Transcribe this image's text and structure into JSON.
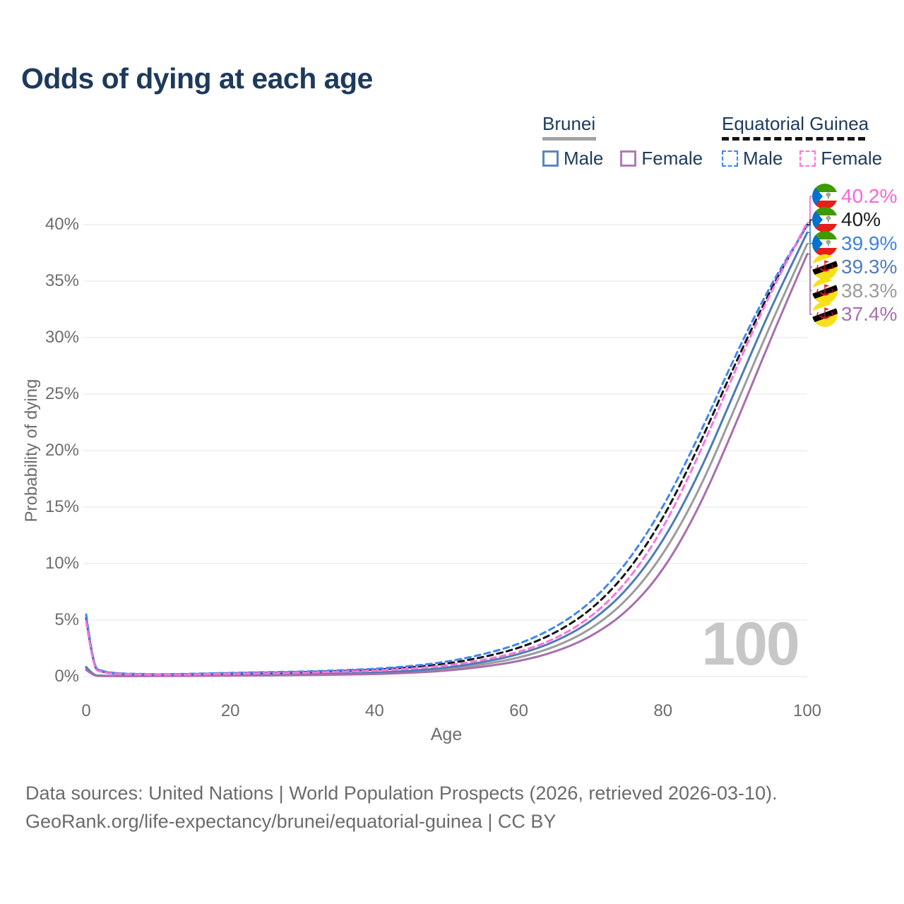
{
  "title": "Odds of dying at each age",
  "legend": {
    "groups": [
      {
        "label": "Brunei",
        "underline_style": "solid",
        "underline_color": "#a3a3a3",
        "items": [
          {
            "label": "Male",
            "color": "#5b87b7",
            "dashed": false
          },
          {
            "label": "Female",
            "color": "#b07cb3",
            "dashed": false
          }
        ]
      },
      {
        "label": "Equatorial Guinea",
        "underline_style": "dashed",
        "underline_color": "#141414",
        "items": [
          {
            "label": "Male",
            "color": "#4285f0",
            "dashed": true
          },
          {
            "label": "Female",
            "color": "#fb74dd",
            "dashed": true
          }
        ]
      }
    ]
  },
  "chart_data": {
    "type": "line",
    "title": "Odds of dying at each age",
    "xlabel": "Age",
    "ylabel": "Probability of dying",
    "xlim": [
      0,
      100
    ],
    "ylim": [
      0,
      40
    ],
    "grid": "horizontal",
    "legend_position": "top-right",
    "watermark": "100",
    "xticks": [
      {
        "v": 0,
        "label": "0"
      },
      {
        "v": 20,
        "label": "20"
      },
      {
        "v": 40,
        "label": "40"
      },
      {
        "v": 60,
        "label": "60"
      },
      {
        "v": 80,
        "label": "80"
      },
      {
        "v": 100,
        "label": "100"
      }
    ],
    "yticks": [
      {
        "v": 0,
        "label": "0%"
      },
      {
        "v": 5,
        "label": "5%"
      },
      {
        "v": 10,
        "label": "10%"
      },
      {
        "v": 15,
        "label": "15%"
      },
      {
        "v": 20,
        "label": "20%"
      },
      {
        "v": 25,
        "label": "25%"
      },
      {
        "v": 30,
        "label": "30%"
      },
      {
        "v": 35,
        "label": "35%"
      },
      {
        "v": 40,
        "label": "40%"
      }
    ],
    "x": [
      0,
      1,
      2,
      4,
      6,
      10,
      15,
      20,
      25,
      30,
      35,
      40,
      45,
      50,
      55,
      60,
      65,
      70,
      75,
      80,
      85,
      90,
      95,
      100
    ],
    "series": [
      {
        "name": "Brunei — Both sexes",
        "country": "brunei",
        "color": "#9c9c9c",
        "dashed": false,
        "end_value": 38.3,
        "values": [
          0.75,
          0.1,
          0.07,
          0.05,
          0.05,
          0.06,
          0.08,
          0.11,
          0.14,
          0.17,
          0.22,
          0.28,
          0.42,
          0.66,
          1.05,
          1.65,
          2.6,
          4.15,
          6.7,
          10.7,
          16.4,
          23.8,
          31.3,
          38.3
        ]
      },
      {
        "name": "Brunei — Male",
        "country": "brunei",
        "color": "#4d7cb5",
        "dashed": false,
        "end_value": 39.3,
        "values": [
          0.85,
          0.12,
          0.08,
          0.06,
          0.06,
          0.07,
          0.1,
          0.14,
          0.17,
          0.2,
          0.26,
          0.34,
          0.5,
          0.78,
          1.25,
          1.95,
          3.05,
          4.8,
          7.6,
          11.9,
          17.9,
          25.3,
          32.7,
          39.3
        ]
      },
      {
        "name": "Brunei — Female",
        "country": "brunei",
        "color": "#a76fad",
        "dashed": false,
        "end_value": 37.4,
        "values": [
          0.6,
          0.08,
          0.05,
          0.04,
          0.04,
          0.05,
          0.06,
          0.08,
          0.1,
          0.13,
          0.17,
          0.22,
          0.33,
          0.52,
          0.85,
          1.35,
          2.15,
          3.5,
          5.7,
          9.3,
          14.9,
          22.2,
          30.0,
          37.4
        ]
      },
      {
        "name": "Equatorial Guinea — Both sexes",
        "country": "equatorial-guinea",
        "color": "#161616",
        "dashed": true,
        "end_value": 40.0,
        "values": [
          5.2,
          0.82,
          0.45,
          0.27,
          0.22,
          0.18,
          0.22,
          0.29,
          0.34,
          0.39,
          0.49,
          0.6,
          0.81,
          1.13,
          1.7,
          2.5,
          3.8,
          5.85,
          9.1,
          13.9,
          20.4,
          27.7,
          34.4,
          40.0
        ]
      },
      {
        "name": "Equatorial Guinea — Male",
        "country": "equatorial-guinea",
        "color": "#4285f0",
        "dashed": true,
        "end_value": 39.9,
        "values": [
          5.5,
          0.9,
          0.5,
          0.3,
          0.25,
          0.2,
          0.25,
          0.33,
          0.39,
          0.44,
          0.55,
          0.68,
          0.92,
          1.3,
          1.95,
          2.85,
          4.3,
          6.5,
          10.0,
          14.9,
          21.3,
          28.4,
          34.8,
          39.9
        ]
      },
      {
        "name": "Equatorial Guinea — Female",
        "country": "equatorial-guinea",
        "color": "#fb74dd",
        "dashed": true,
        "end_value": 40.2,
        "values": [
          4.9,
          0.74,
          0.4,
          0.24,
          0.2,
          0.16,
          0.19,
          0.25,
          0.3,
          0.34,
          0.43,
          0.53,
          0.7,
          0.97,
          1.45,
          2.15,
          3.3,
          5.2,
          8.3,
          13.0,
          19.6,
          27.1,
          34.1,
          40.2
        ]
      }
    ],
    "end_labels": [
      {
        "text": "40.2%",
        "value": 40.2,
        "color": "#f766d8",
        "flag": "equatorial-guinea"
      },
      {
        "text": "40%",
        "value": 40.0,
        "color": "#1c1c1c",
        "flag": "equatorial-guinea"
      },
      {
        "text": "39.9%",
        "value": 39.9,
        "color": "#3f80ea",
        "flag": "equatorial-guinea"
      },
      {
        "text": "39.3%",
        "value": 39.3,
        "color": "#4d7cc0",
        "flag": "brunei"
      },
      {
        "text": "38.3%",
        "value": 38.3,
        "color": "#9c9c9c",
        "flag": "brunei"
      },
      {
        "text": "37.4%",
        "value": 37.4,
        "color": "#a86fad",
        "flag": "brunei"
      }
    ]
  },
  "footer": {
    "line1": "Data sources: United Nations | World Population Prospects (2026, retrieved 2026-03-10).",
    "line2": "GeoRank.org/life-expectancy/brunei/equatorial-guinea | CC BY"
  }
}
